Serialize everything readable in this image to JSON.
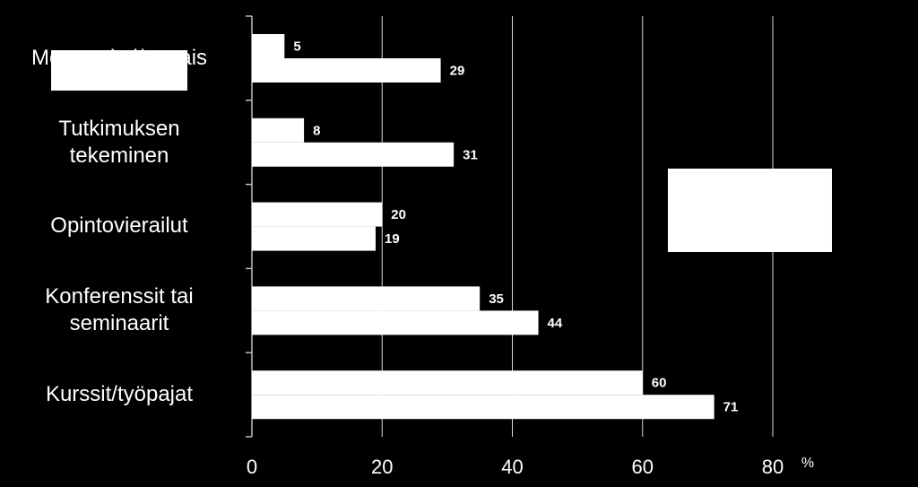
{
  "chart_data": {
    "type": "hbar",
    "categories": [
      "Mentorointi/vertais",
      "Tutkimuksen tekeminen",
      "Opintovierailut",
      "Konferenssit tai seminaarit",
      "Kurssit/työpajat"
    ],
    "series": [
      {
        "color": "#ffffff",
        "values": [
          5,
          8,
          20,
          35,
          60
        ]
      },
      {
        "color": "#ffffff",
        "values": [
          29,
          31,
          19,
          44,
          71
        ]
      }
    ],
    "x_label": "%",
    "xlim": [
      0,
      80
    ],
    "xticks": [
      0,
      20,
      40,
      60,
      80
    ],
    "grid": true
  }
}
